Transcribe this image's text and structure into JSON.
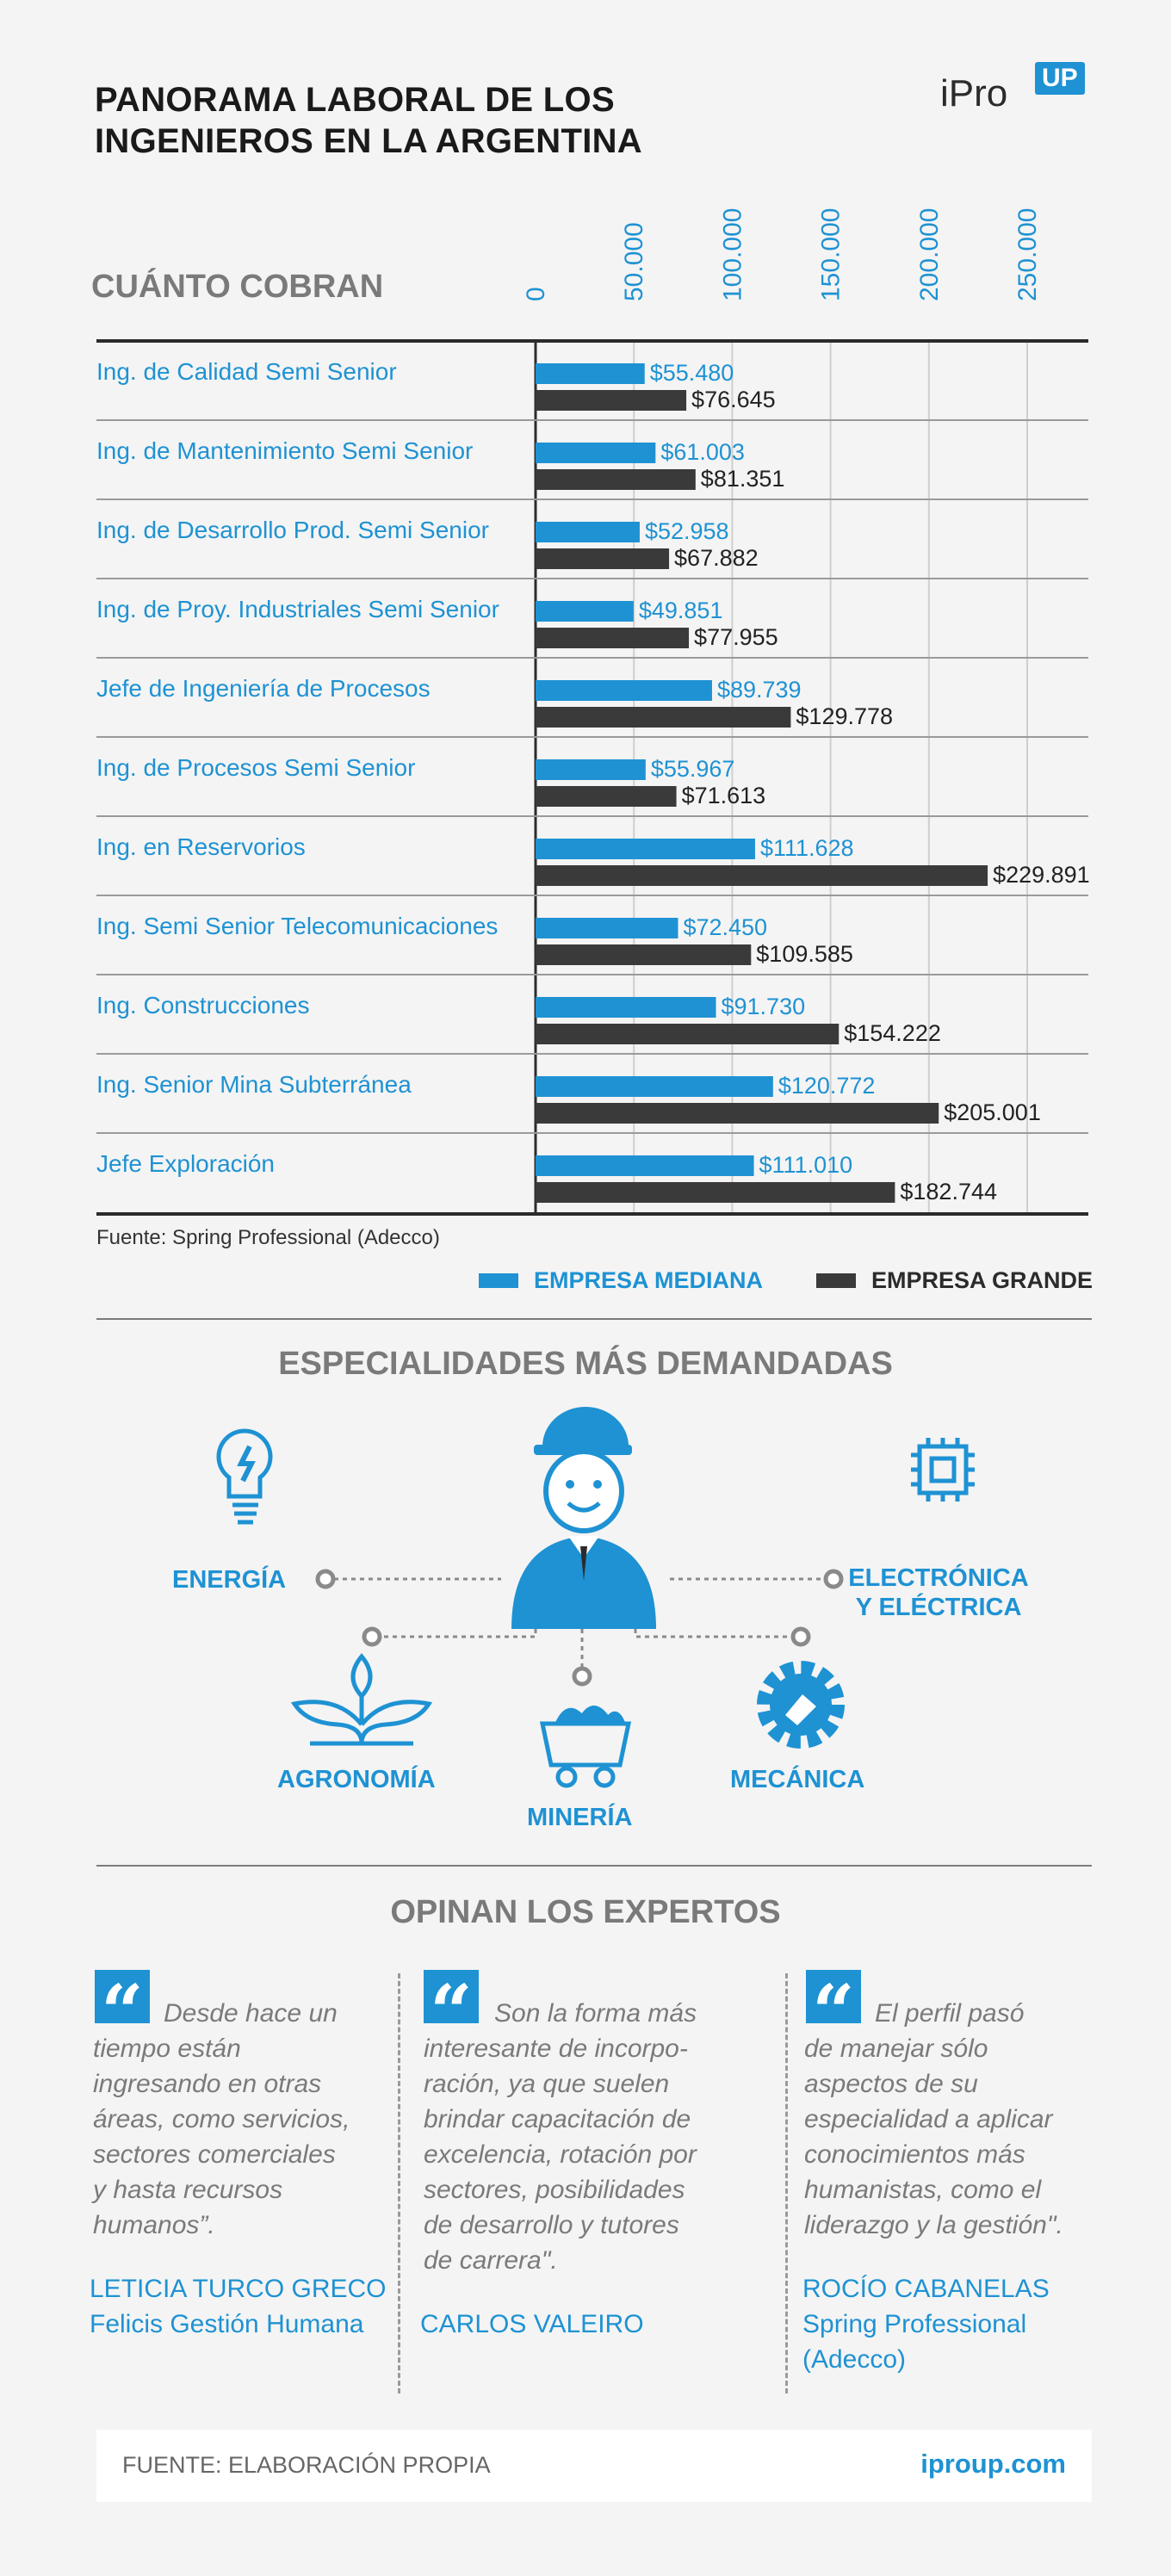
{
  "header": {
    "title_line1": "PANORAMA LABORAL DE LOS",
    "title_line2": "INGENIEROS EN LA ARGENTINA",
    "logo_text": "iPro",
    "logo_badge": "UP"
  },
  "chart_data": {
    "type": "bar",
    "orientation": "horizontal",
    "title": "CUÁNTO COBRAN",
    "xlim": [
      0,
      250000
    ],
    "tick_labels": [
      "0",
      "50.000",
      "100.000",
      "150.000",
      "200.000",
      "250.000"
    ],
    "tick_values": [
      0,
      50000,
      100000,
      150000,
      200000,
      250000
    ],
    "grid": true,
    "legend_position": "bottom-right",
    "categories": [
      "Ing. de Calidad Semi Senior",
      "Ing. de Mantenimiento Semi Senior",
      "Ing. de Desarrollo Prod. Semi Senior",
      "Ing. de Proy. Industriales Semi Senior",
      "Jefe de Ingeniería de Procesos",
      "Ing. de Procesos Semi Senior",
      "Ing. en Reservorios",
      "Ing. Semi Senior Telecomunicaciones",
      "Ing. Construcciones",
      "Ing. Senior Mina Subterránea",
      "Jefe Exploración"
    ],
    "series": [
      {
        "name": "EMPRESA MEDIANA",
        "color": "#1e92d3",
        "values": [
          55480,
          61003,
          52958,
          49851,
          89739,
          55967,
          111628,
          72450,
          91730,
          120772,
          111010
        ],
        "labels": [
          "$55.480",
          "$61.003",
          "$52.958",
          "$49.851",
          "$89.739",
          "$55.967",
          "$111.628",
          "$72.450",
          "$91.730",
          "$120.772",
          "$111.010"
        ]
      },
      {
        "name": "EMPRESA GRANDE",
        "color": "#3a3a3a",
        "values": [
          76645,
          81351,
          67882,
          77955,
          129778,
          71613,
          229891,
          109585,
          154222,
          205001,
          182744
        ],
        "labels": [
          "$76.645",
          "$81.351",
          "$67.882",
          "$77.955",
          "$129.778",
          "$71.613",
          "$229.891",
          "$109.585",
          "$154.222",
          "$205.001",
          "$182.744"
        ]
      }
    ]
  },
  "source_note": "Fuente: Spring Professional (Adecco)",
  "specialties": {
    "title": "ESPECIALIDADES MÁS DEMANDADAS",
    "energia": "ENERGÍA",
    "electronica_line1": "ELECTRÓNICA",
    "electronica_line2": "Y ELÉCTRICA",
    "agronomia": "AGRONOMÍA",
    "mineria": "MINERÍA",
    "mecanica": "MECÁNICA"
  },
  "experts": {
    "title": "OPINAN LOS EXPERTOS",
    "q1_lines": [
      "Desde hace un",
      "tiempo están",
      "ingresando en otras",
      "áreas, como servicios,",
      "sectores comerciales",
      "y hasta recursos",
      "humanos”."
    ],
    "a1_lines": [
      "LETICIA TURCO GRECO",
      "Felicis Gestión Humana"
    ],
    "q2_lines": [
      "Son la forma más",
      "interesante de incorpo-",
      "ración, ya que suelen",
      "brindar capacitación de",
      "excelencia, rotación por",
      "sectores, posibilidades",
      "de desarrollo y tutores",
      "de carrera\"."
    ],
    "a2_lines": [
      "CARLOS VALEIRO"
    ],
    "q3_lines": [
      "El perfil pasó",
      "de manejar sólo",
      "aspectos de su",
      "especialidad a aplicar",
      "conocimientos más",
      "humanistas, como el",
      "liderazgo y la gestión\"."
    ],
    "a3_lines": [
      "ROCÍO CABANELAS",
      "Spring Professional",
      "(Adecco)"
    ]
  },
  "footer": {
    "source": "FUENTE: ELABORACIÓN PROPIA",
    "site": "iproup.com"
  }
}
